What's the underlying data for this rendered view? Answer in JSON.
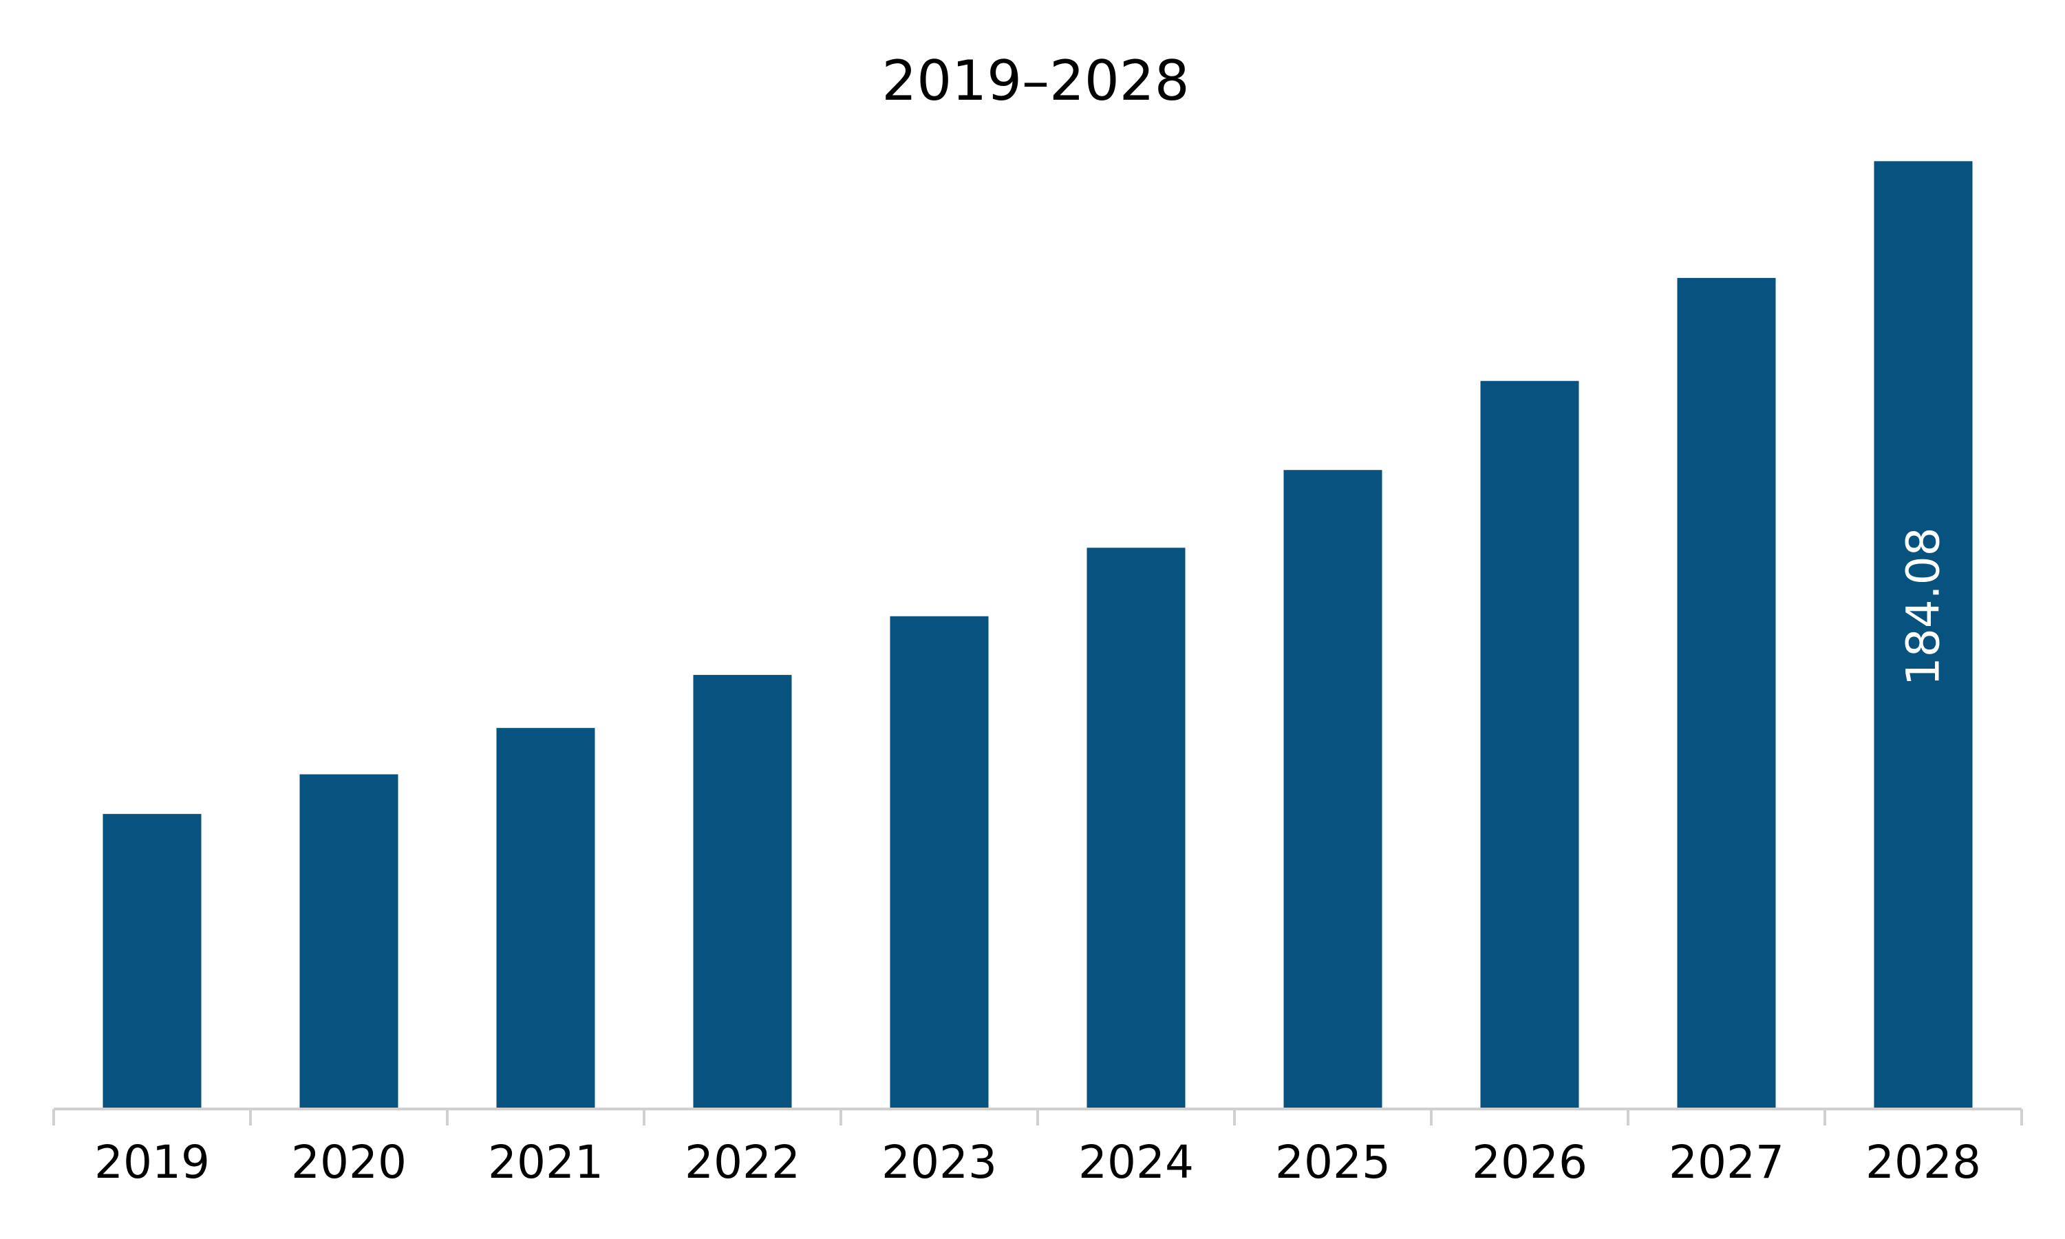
{
  "chart_data": {
    "type": "bar",
    "title": "2019–2028",
    "xlabel": "",
    "ylabel": "",
    "categories": [
      "2019",
      "2020",
      "2021",
      "2022",
      "2023",
      "2024",
      "2025",
      "2026",
      "2027",
      "2028"
    ],
    "values": [
      57.3,
      65.0,
      74.0,
      84.3,
      95.7,
      109.0,
      124.1,
      141.4,
      161.4,
      184.08
    ],
    "data_labels": [
      null,
      null,
      null,
      null,
      null,
      null,
      null,
      null,
      null,
      "184.08"
    ],
    "ylim": [
      0,
      190
    ],
    "grid": false,
    "legend": "none",
    "colors": {
      "bar": "#08527f",
      "axis": "#d0d0d0",
      "text": "#000000",
      "data_label": "#ffffff"
    }
  }
}
